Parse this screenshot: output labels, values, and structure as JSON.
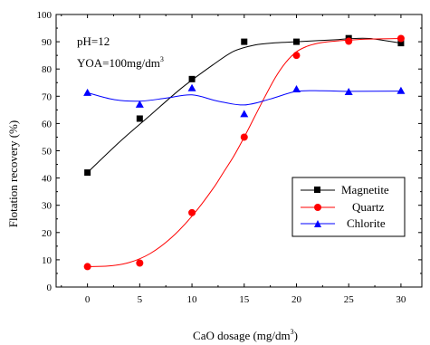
{
  "chart_data": {
    "type": "line",
    "xlabel": "CaO dosage (mg/dm",
    "xlabel_sup": "3",
    "xlabel_tail": ")",
    "ylabel": "Flotation recovery (%)",
    "xlim": [
      -3,
      32
    ],
    "ylim": [
      0,
      100
    ],
    "x_ticks": [
      0,
      5,
      10,
      15,
      20,
      25,
      30
    ],
    "y_ticks": [
      0,
      10,
      20,
      30,
      40,
      50,
      60,
      70,
      80,
      90,
      100
    ],
    "grid": false,
    "legend_position": "right-middle",
    "annotations": [
      {
        "text": "pH=12",
        "sup": ""
      },
      {
        "text": "YOA=100mg/dm",
        "sup": "3"
      }
    ],
    "x": [
      0,
      5,
      10,
      15,
      20,
      25,
      30
    ],
    "series": [
      {
        "name": "Magnetite",
        "color": "#000000",
        "marker": "square",
        "values": [
          42.0,
          61.8,
          76.3,
          90.0,
          90.0,
          91.3,
          89.5
        ],
        "fit": [
          [
            0,
            42
          ],
          [
            3,
            53
          ],
          [
            6,
            63
          ],
          [
            9,
            73
          ],
          [
            12,
            81.5
          ],
          [
            14,
            86.5
          ],
          [
            16,
            88.8
          ],
          [
            18,
            89.6
          ],
          [
            20,
            90.0
          ],
          [
            22,
            90.4
          ],
          [
            24,
            90.8
          ],
          [
            25,
            91.1
          ],
          [
            27,
            91.2
          ],
          [
            30,
            89.5
          ]
        ]
      },
      {
        "name": "Quartz",
        "color": "#ff0000",
        "marker": "circle",
        "values": [
          7.5,
          8.8,
          27.3,
          55.0,
          85.0,
          90.2,
          91.2
        ],
        "fit": [
          [
            0,
            7.5
          ],
          [
            2,
            7.7
          ],
          [
            4,
            9.0
          ],
          [
            6,
            12.3
          ],
          [
            8,
            18.0
          ],
          [
            10,
            26.0
          ],
          [
            12,
            36.0
          ],
          [
            13,
            42.0
          ],
          [
            14,
            48.0
          ],
          [
            15,
            55.0
          ],
          [
            16,
            62.5
          ],
          [
            17,
            70.0
          ],
          [
            18,
            77.0
          ],
          [
            19,
            82.5
          ],
          [
            20,
            86.3
          ],
          [
            21,
            88.3
          ],
          [
            22,
            89.4
          ],
          [
            23,
            90.0
          ],
          [
            25,
            90.6
          ],
          [
            27,
            91.0
          ],
          [
            30,
            91.2
          ]
        ]
      },
      {
        "name": "Chlorite",
        "color": "#0000ff",
        "marker": "triangle",
        "values": [
          71.3,
          67.0,
          73.0,
          63.5,
          72.6,
          71.6,
          72.0
        ],
        "fit": [
          [
            0,
            71.3
          ],
          [
            2.5,
            68.8
          ],
          [
            5,
            68.2
          ],
          [
            7.5,
            69.3
          ],
          [
            10,
            70.5
          ],
          [
            12.5,
            68.2
          ],
          [
            15,
            66.8
          ],
          [
            17.5,
            69.0
          ],
          [
            20,
            71.8
          ],
          [
            22.5,
            72.0
          ],
          [
            25,
            71.8
          ],
          [
            30,
            71.9
          ]
        ]
      }
    ]
  }
}
